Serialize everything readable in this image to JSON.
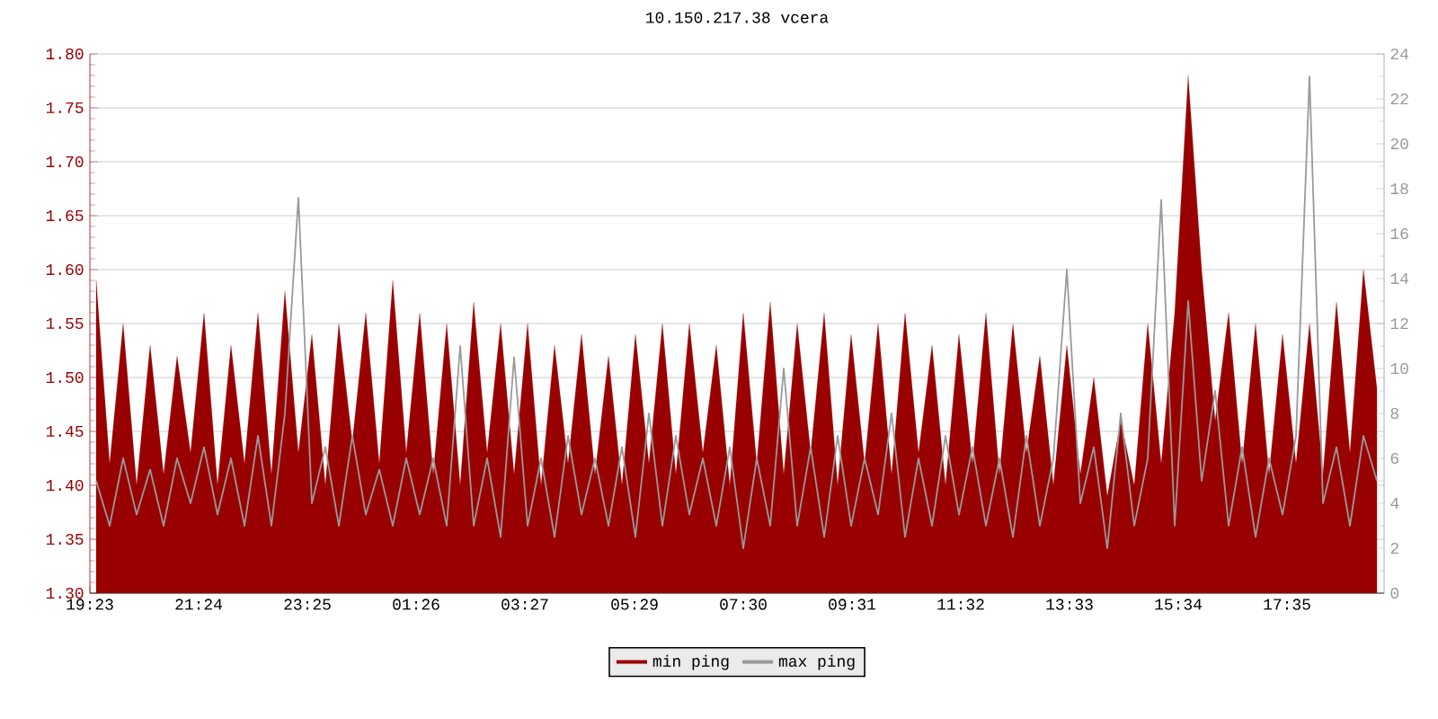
{
  "chart_data": {
    "type": "area",
    "title": "10.150.217.38 vcera",
    "x": [
      "--01-01T19:30",
      "--01-01T19:45",
      "--01-01T20:00",
      "--01-01T20:15",
      "--01-01T20:30",
      "--01-01T20:45",
      "--01-01T21:00",
      "--01-01T21:15",
      "--01-01T21:30",
      "--01-01T21:45",
      "--01-01T22:00",
      "--01-01T22:15",
      "--01-01T22:30",
      "--01-01T22:45",
      "--01-01T23:00",
      "--01-01T23:15",
      "--01-01T23:30",
      "--01-01T23:45",
      "--01-02T00:00",
      "--01-02T00:15",
      "--01-02T00:30",
      "--01-02T00:45",
      "--01-02T01:00",
      "--01-02T01:15",
      "--01-02T01:30",
      "--01-02T01:45",
      "--01-02T02:00",
      "--01-02T02:15",
      "--01-02T02:30",
      "--01-02T02:45",
      "--01-02T03:00",
      "--01-02T03:15",
      "--01-02T03:30",
      "--01-02T03:45",
      "--01-02T04:00",
      "--01-02T04:15",
      "--01-02T04:30",
      "--01-02T04:45",
      "--01-02T05:00",
      "--01-02T05:15",
      "--01-02T05:30",
      "--01-02T05:45",
      "--01-02T06:00",
      "--01-02T06:15",
      "--01-02T06:30",
      "--01-02T06:45",
      "--01-02T07:00",
      "--01-02T07:15",
      "--01-02T07:30",
      "--01-02T07:45",
      "--01-02T08:00",
      "--01-02T08:15",
      "--01-02T08:30",
      "--01-02T08:45",
      "--01-02T09:00",
      "--01-02T09:15",
      "--01-02T09:30",
      "--01-02T09:45",
      "--01-02T10:00",
      "--01-02T10:15",
      "--01-02T10:30",
      "--01-02T10:45",
      "--01-02T11:00",
      "--01-02T11:15",
      "--01-02T11:30",
      "--01-02T11:45",
      "--01-02T12:00",
      "--01-02T12:15",
      "--01-02T12:30",
      "--01-02T12:45",
      "--01-02T13:00",
      "--01-02T13:15",
      "--01-02T13:30",
      "--01-02T13:45",
      "--01-02T14:00",
      "--01-02T14:15",
      "--01-02T14:30",
      "--01-02T14:45",
      "--01-02T15:00",
      "--01-02T15:15",
      "--01-02T15:30",
      "--01-02T15:45",
      "--01-02T16:00",
      "--01-02T16:15",
      "--01-02T16:30",
      "--01-02T16:45",
      "--01-02T17:00",
      "--01-02T17:15",
      "--01-02T17:30",
      "--01-02T17:45",
      "--01-02T18:00",
      "--01-02T18:15",
      "--01-02T18:30",
      "--01-02T18:45",
      "--01-02T19:00",
      "--01-02T19:15"
    ],
    "series": [
      {
        "name": "min ping",
        "color": "#990000",
        "values": [
          1.59,
          1.42,
          1.55,
          1.4,
          1.53,
          1.41,
          1.52,
          1.43,
          1.56,
          1.4,
          1.53,
          1.42,
          1.56,
          1.41,
          1.58,
          1.43,
          1.54,
          1.4,
          1.55,
          1.44,
          1.56,
          1.42,
          1.59,
          1.43,
          1.56,
          1.41,
          1.55,
          1.4,
          1.57,
          1.43,
          1.55,
          1.41,
          1.55,
          1.4,
          1.53,
          1.42,
          1.54,
          1.41,
          1.52,
          1.4,
          1.54,
          1.42,
          1.55,
          1.41,
          1.55,
          1.43,
          1.53,
          1.4,
          1.56,
          1.42,
          1.57,
          1.41,
          1.55,
          1.43,
          1.56,
          1.4,
          1.54,
          1.42,
          1.55,
          1.41,
          1.56,
          1.43,
          1.53,
          1.4,
          1.54,
          1.42,
          1.56,
          1.41,
          1.55,
          1.43,
          1.52,
          1.4,
          1.53,
          1.41,
          1.5,
          1.39,
          1.46,
          1.4,
          1.55,
          1.42,
          1.56,
          1.78,
          1.6,
          1.46,
          1.56,
          1.42,
          1.55,
          1.41,
          1.54,
          1.42,
          1.55,
          1.41,
          1.57,
          1.43,
          1.6,
          1.49
        ]
      },
      {
        "name": "max ping",
        "type": "line",
        "axis": "y2",
        "color": "#999999",
        "values": [
          5,
          3,
          6,
          3.5,
          5.5,
          3,
          6,
          4,
          6.5,
          3.5,
          6,
          3,
          7,
          3,
          8,
          17.6,
          4,
          6.5,
          3,
          7,
          3.5,
          5.5,
          3,
          6,
          3.5,
          6,
          3,
          11,
          3,
          6,
          2.5,
          10.5,
          3,
          6,
          2.5,
          7,
          3.5,
          6,
          3,
          6.5,
          2.5,
          8,
          3,
          7,
          3.5,
          6,
          3,
          6.5,
          2,
          6,
          3,
          10,
          3,
          6.5,
          2.5,
          7,
          3,
          6,
          3.5,
          8,
          2.5,
          6,
          3,
          7,
          3.5,
          6.5,
          3,
          6,
          2.5,
          7,
          3,
          6,
          14.4,
          4,
          6.5,
          2,
          8,
          3,
          6,
          17.5,
          3,
          13,
          5,
          9,
          3,
          6.5,
          2.5,
          6,
          3.5,
          7,
          23,
          4,
          6.5,
          3,
          7,
          5
        ]
      }
    ],
    "xlim": [
      "--01-01T19:23",
      "--01-02T19:23"
    ],
    "xticks": [
      {
        "value": "--01-01T19:23",
        "label": "19:23"
      },
      {
        "value": "--01-01T21:24",
        "label": "21:24"
      },
      {
        "value": "--01-01T23:25",
        "label": "23:25"
      },
      {
        "value": "--01-02T01:26",
        "label": "01:26"
      },
      {
        "value": "--01-02T03:27",
        "label": "03:27"
      },
      {
        "value": "--01-02T05:29",
        "label": "05:29"
      },
      {
        "value": "--01-02T07:30",
        "label": "07:30"
      },
      {
        "value": "--01-02T09:31",
        "label": "09:31"
      },
      {
        "value": "--01-02T11:32",
        "label": "11:32"
      },
      {
        "value": "--01-02T13:33",
        "label": "13:33"
      },
      {
        "value": "--01-02T15:34",
        "label": "15:34"
      },
      {
        "value": "--01-02T17:35",
        "label": "17:35"
      }
    ],
    "ylim": [
      1.3,
      1.8
    ],
    "yticks": [
      {
        "value": 1.3,
        "label": "1.30"
      },
      1.35,
      {
        "value": 1.4,
        "label": "1.40"
      },
      1.45,
      {
        "value": 1.5,
        "label": "1.50"
      },
      1.55,
      {
        "value": 1.6,
        "label": "1.60"
      },
      1.65,
      {
        "value": 1.7,
        "label": "1.70"
      },
      1.75,
      {
        "value": 1.8,
        "label": "1.80"
      }
    ],
    "y2lim": [
      0,
      24
    ],
    "y2ticks": [
      0,
      2,
      4,
      6,
      8,
      10,
      12,
      14,
      16,
      18,
      20,
      22,
      24
    ],
    "grid": "y",
    "legend": "bottom",
    "marker": "none",
    "line_style": "solid"
  }
}
